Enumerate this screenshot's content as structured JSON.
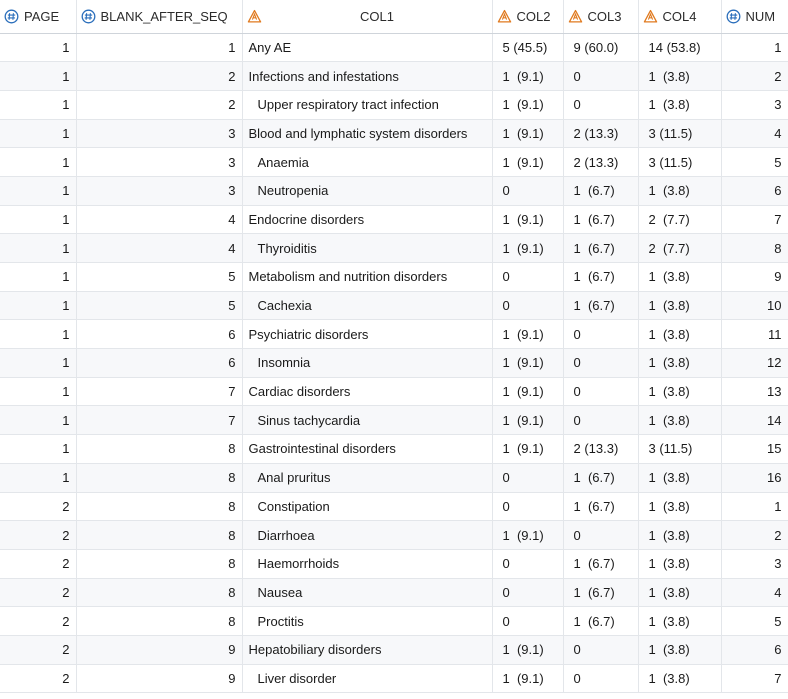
{
  "columns": [
    {
      "key": "page",
      "label": "PAGE",
      "icon": "numeric-column-icon"
    },
    {
      "key": "blank",
      "label": "BLANK_AFTER_SEQ",
      "icon": "numeric-column-icon"
    },
    {
      "key": "col1",
      "label": "COL1",
      "icon": "character-column-icon"
    },
    {
      "key": "col2",
      "label": "COL2",
      "icon": "character-column-icon"
    },
    {
      "key": "col3",
      "label": "COL3",
      "icon": "character-column-icon"
    },
    {
      "key": "col4",
      "label": "COL4",
      "icon": "character-column-icon"
    },
    {
      "key": "num",
      "label": "NUM",
      "icon": "numeric-column-icon"
    }
  ],
  "colors": {
    "numeric_icon": "#2a6ebb",
    "character_icon": "#e07a1f"
  },
  "rows": [
    {
      "page": "1",
      "blank": "1",
      "col1": "Any AE",
      "indent": false,
      "col2": "5 (45.5)",
      "col3": "9 (60.0)",
      "col4": "14 (53.8)",
      "num": "1"
    },
    {
      "page": "1",
      "blank": "2",
      "col1": "Infections and infestations",
      "indent": false,
      "col2": "1  (9.1)",
      "col3": "0",
      "col4": "1  (3.8)",
      "num": "2"
    },
    {
      "page": "1",
      "blank": "2",
      "col1": "Upper respiratory tract infection",
      "indent": true,
      "col2": "1  (9.1)",
      "col3": "0",
      "col4": "1  (3.8)",
      "num": "3"
    },
    {
      "page": "1",
      "blank": "3",
      "col1": "Blood and lymphatic system disorders",
      "indent": false,
      "col2": "1  (9.1)",
      "col3": "2 (13.3)",
      "col4": "3 (11.5)",
      "num": "4"
    },
    {
      "page": "1",
      "blank": "3",
      "col1": "Anaemia",
      "indent": true,
      "col2": "1  (9.1)",
      "col3": "2 (13.3)",
      "col4": "3 (11.5)",
      "num": "5"
    },
    {
      "page": "1",
      "blank": "3",
      "col1": "Neutropenia",
      "indent": true,
      "col2": "0",
      "col3": "1  (6.7)",
      "col4": "1  (3.8)",
      "num": "6"
    },
    {
      "page": "1",
      "blank": "4",
      "col1": "Endocrine disorders",
      "indent": false,
      "col2": "1  (9.1)",
      "col3": "1  (6.7)",
      "col4": "2  (7.7)",
      "num": "7"
    },
    {
      "page": "1",
      "blank": "4",
      "col1": "Thyroiditis",
      "indent": true,
      "col2": "1  (9.1)",
      "col3": "1  (6.7)",
      "col4": "2  (7.7)",
      "num": "8"
    },
    {
      "page": "1",
      "blank": "5",
      "col1": "Metabolism and nutrition disorders",
      "indent": false,
      "col2": "0",
      "col3": "1  (6.7)",
      "col4": "1  (3.8)",
      "num": "9"
    },
    {
      "page": "1",
      "blank": "5",
      "col1": "Cachexia",
      "indent": true,
      "col2": "0",
      "col3": "1  (6.7)",
      "col4": "1  (3.8)",
      "num": "10"
    },
    {
      "page": "1",
      "blank": "6",
      "col1": "Psychiatric disorders",
      "indent": false,
      "col2": "1  (9.1)",
      "col3": "0",
      "col4": "1  (3.8)",
      "num": "11"
    },
    {
      "page": "1",
      "blank": "6",
      "col1": "Insomnia",
      "indent": true,
      "col2": "1  (9.1)",
      "col3": "0",
      "col4": "1  (3.8)",
      "num": "12"
    },
    {
      "page": "1",
      "blank": "7",
      "col1": "Cardiac disorders",
      "indent": false,
      "col2": "1  (9.1)",
      "col3": "0",
      "col4": "1  (3.8)",
      "num": "13"
    },
    {
      "page": "1",
      "blank": "7",
      "col1": "Sinus tachycardia",
      "indent": true,
      "col2": "1  (9.1)",
      "col3": "0",
      "col4": "1  (3.8)",
      "num": "14"
    },
    {
      "page": "1",
      "blank": "8",
      "col1": "Gastrointestinal disorders",
      "indent": false,
      "col2": "1  (9.1)",
      "col3": "2 (13.3)",
      "col4": "3 (11.5)",
      "num": "15"
    },
    {
      "page": "1",
      "blank": "8",
      "col1": "Anal pruritus",
      "indent": true,
      "col2": "0",
      "col3": "1  (6.7)",
      "col4": "1  (3.8)",
      "num": "16"
    },
    {
      "page": "2",
      "blank": "8",
      "col1": "Constipation",
      "indent": true,
      "col2": "0",
      "col3": "1  (6.7)",
      "col4": "1  (3.8)",
      "num": "1"
    },
    {
      "page": "2",
      "blank": "8",
      "col1": "Diarrhoea",
      "indent": true,
      "col2": "1  (9.1)",
      "col3": "0",
      "col4": "1  (3.8)",
      "num": "2"
    },
    {
      "page": "2",
      "blank": "8",
      "col1": "Haemorrhoids",
      "indent": true,
      "col2": "0",
      "col3": "1  (6.7)",
      "col4": "1  (3.8)",
      "num": "3"
    },
    {
      "page": "2",
      "blank": "8",
      "col1": "Nausea",
      "indent": true,
      "col2": "0",
      "col3": "1  (6.7)",
      "col4": "1  (3.8)",
      "num": "4"
    },
    {
      "page": "2",
      "blank": "8",
      "col1": "Proctitis",
      "indent": true,
      "col2": "0",
      "col3": "1  (6.7)",
      "col4": "1  (3.8)",
      "num": "5"
    },
    {
      "page": "2",
      "blank": "9",
      "col1": "Hepatobiliary disorders",
      "indent": false,
      "col2": "1  (9.1)",
      "col3": "0",
      "col4": "1  (3.8)",
      "num": "6"
    },
    {
      "page": "2",
      "blank": "9",
      "col1": "Liver disorder",
      "indent": true,
      "col2": "1  (9.1)",
      "col3": "0",
      "col4": "1  (3.8)",
      "num": "7"
    }
  ]
}
